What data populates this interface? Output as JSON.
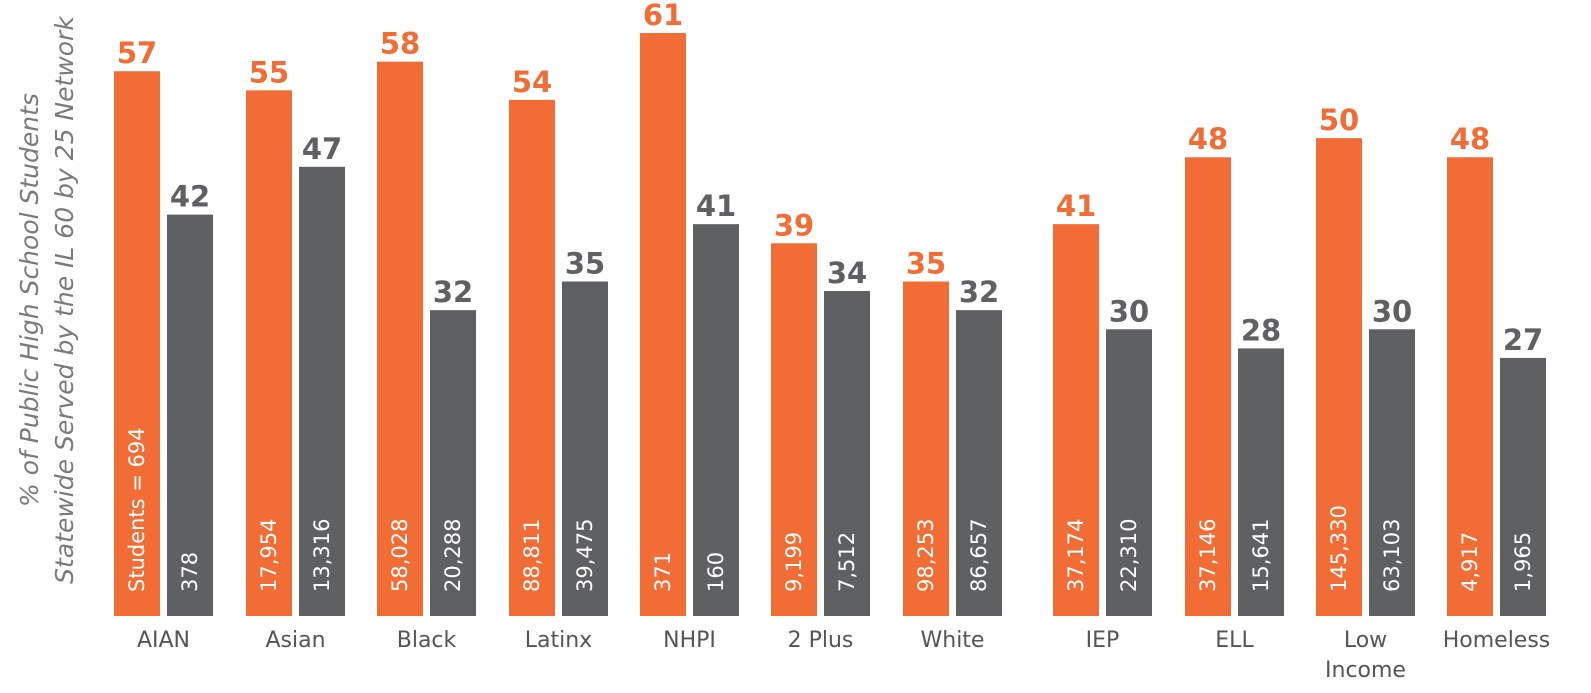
{
  "chart_data": {
    "type": "bar",
    "ylabel_lines": [
      "% of Public High School Students",
      "Statewide Served by the IL 60 by 25 Network"
    ],
    "categories": [
      [
        "AIAN"
      ],
      [
        "Asian"
      ],
      [
        "Black"
      ],
      [
        "Latinx"
      ],
      [
        "NHPI"
      ],
      [
        "2 Plus"
      ],
      [
        "White"
      ],
      [
        "IEP"
      ],
      [
        "ELL"
      ],
      [
        "Low",
        "Income"
      ],
      [
        "Homeless"
      ]
    ],
    "series": [
      {
        "color": "#f26d35",
        "values": [
          57,
          55,
          58,
          54,
          61,
          39,
          35,
          41,
          48,
          50,
          48
        ],
        "counts": [
          "Students = 694",
          "17,954",
          "58,028",
          "88,811",
          "371",
          "9,199",
          "98,253",
          "37,174",
          "37,146",
          "145,330",
          "4,917"
        ]
      },
      {
        "color": "#5f6062",
        "values": [
          42,
          47,
          32,
          35,
          41,
          34,
          32,
          30,
          28,
          30,
          27
        ],
        "counts": [
          "378",
          "13,316",
          "20,288",
          "39,475",
          "160",
          "7,512",
          "86,657",
          "22,310",
          "15,641",
          "63,103",
          "1,965"
        ]
      }
    ],
    "ylim": [
      0,
      61
    ],
    "grid": false,
    "legend": "none"
  }
}
